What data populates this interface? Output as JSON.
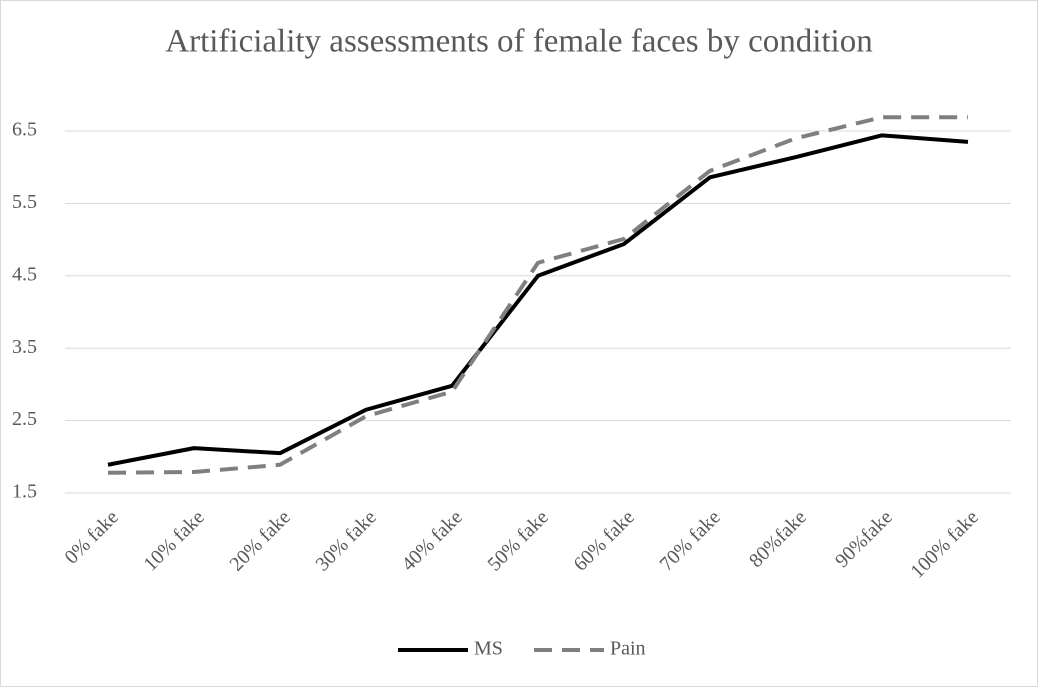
{
  "chart_data": {
    "type": "line",
    "title": "Artificiality assessments of female faces by condition",
    "categories": [
      "0% fake",
      "10% fake",
      "20% fake",
      "30% fake",
      "40% fake",
      "50% fake",
      "60% fake",
      "70% fake",
      "80%fake",
      "90%fake",
      "100% fake"
    ],
    "series": [
      {
        "name": "MS",
        "color": "#000000",
        "dashed": false,
        "values": [
          1.89,
          2.12,
          2.05,
          2.65,
          2.98,
          4.5,
          4.94,
          5.86,
          6.14,
          6.44,
          6.35
        ]
      },
      {
        "name": "Pain",
        "color": "#7f7f7f",
        "dashed": true,
        "values": [
          1.78,
          1.79,
          1.89,
          2.56,
          2.9,
          4.68,
          5.01,
          5.95,
          6.4,
          6.69,
          6.69
        ]
      }
    ],
    "ylim": [
      1.5,
      7
    ],
    "yticks": [
      1.5,
      2.5,
      3.5,
      4.5,
      5.5,
      6.5
    ],
    "grid": true,
    "legend": "bottom"
  }
}
